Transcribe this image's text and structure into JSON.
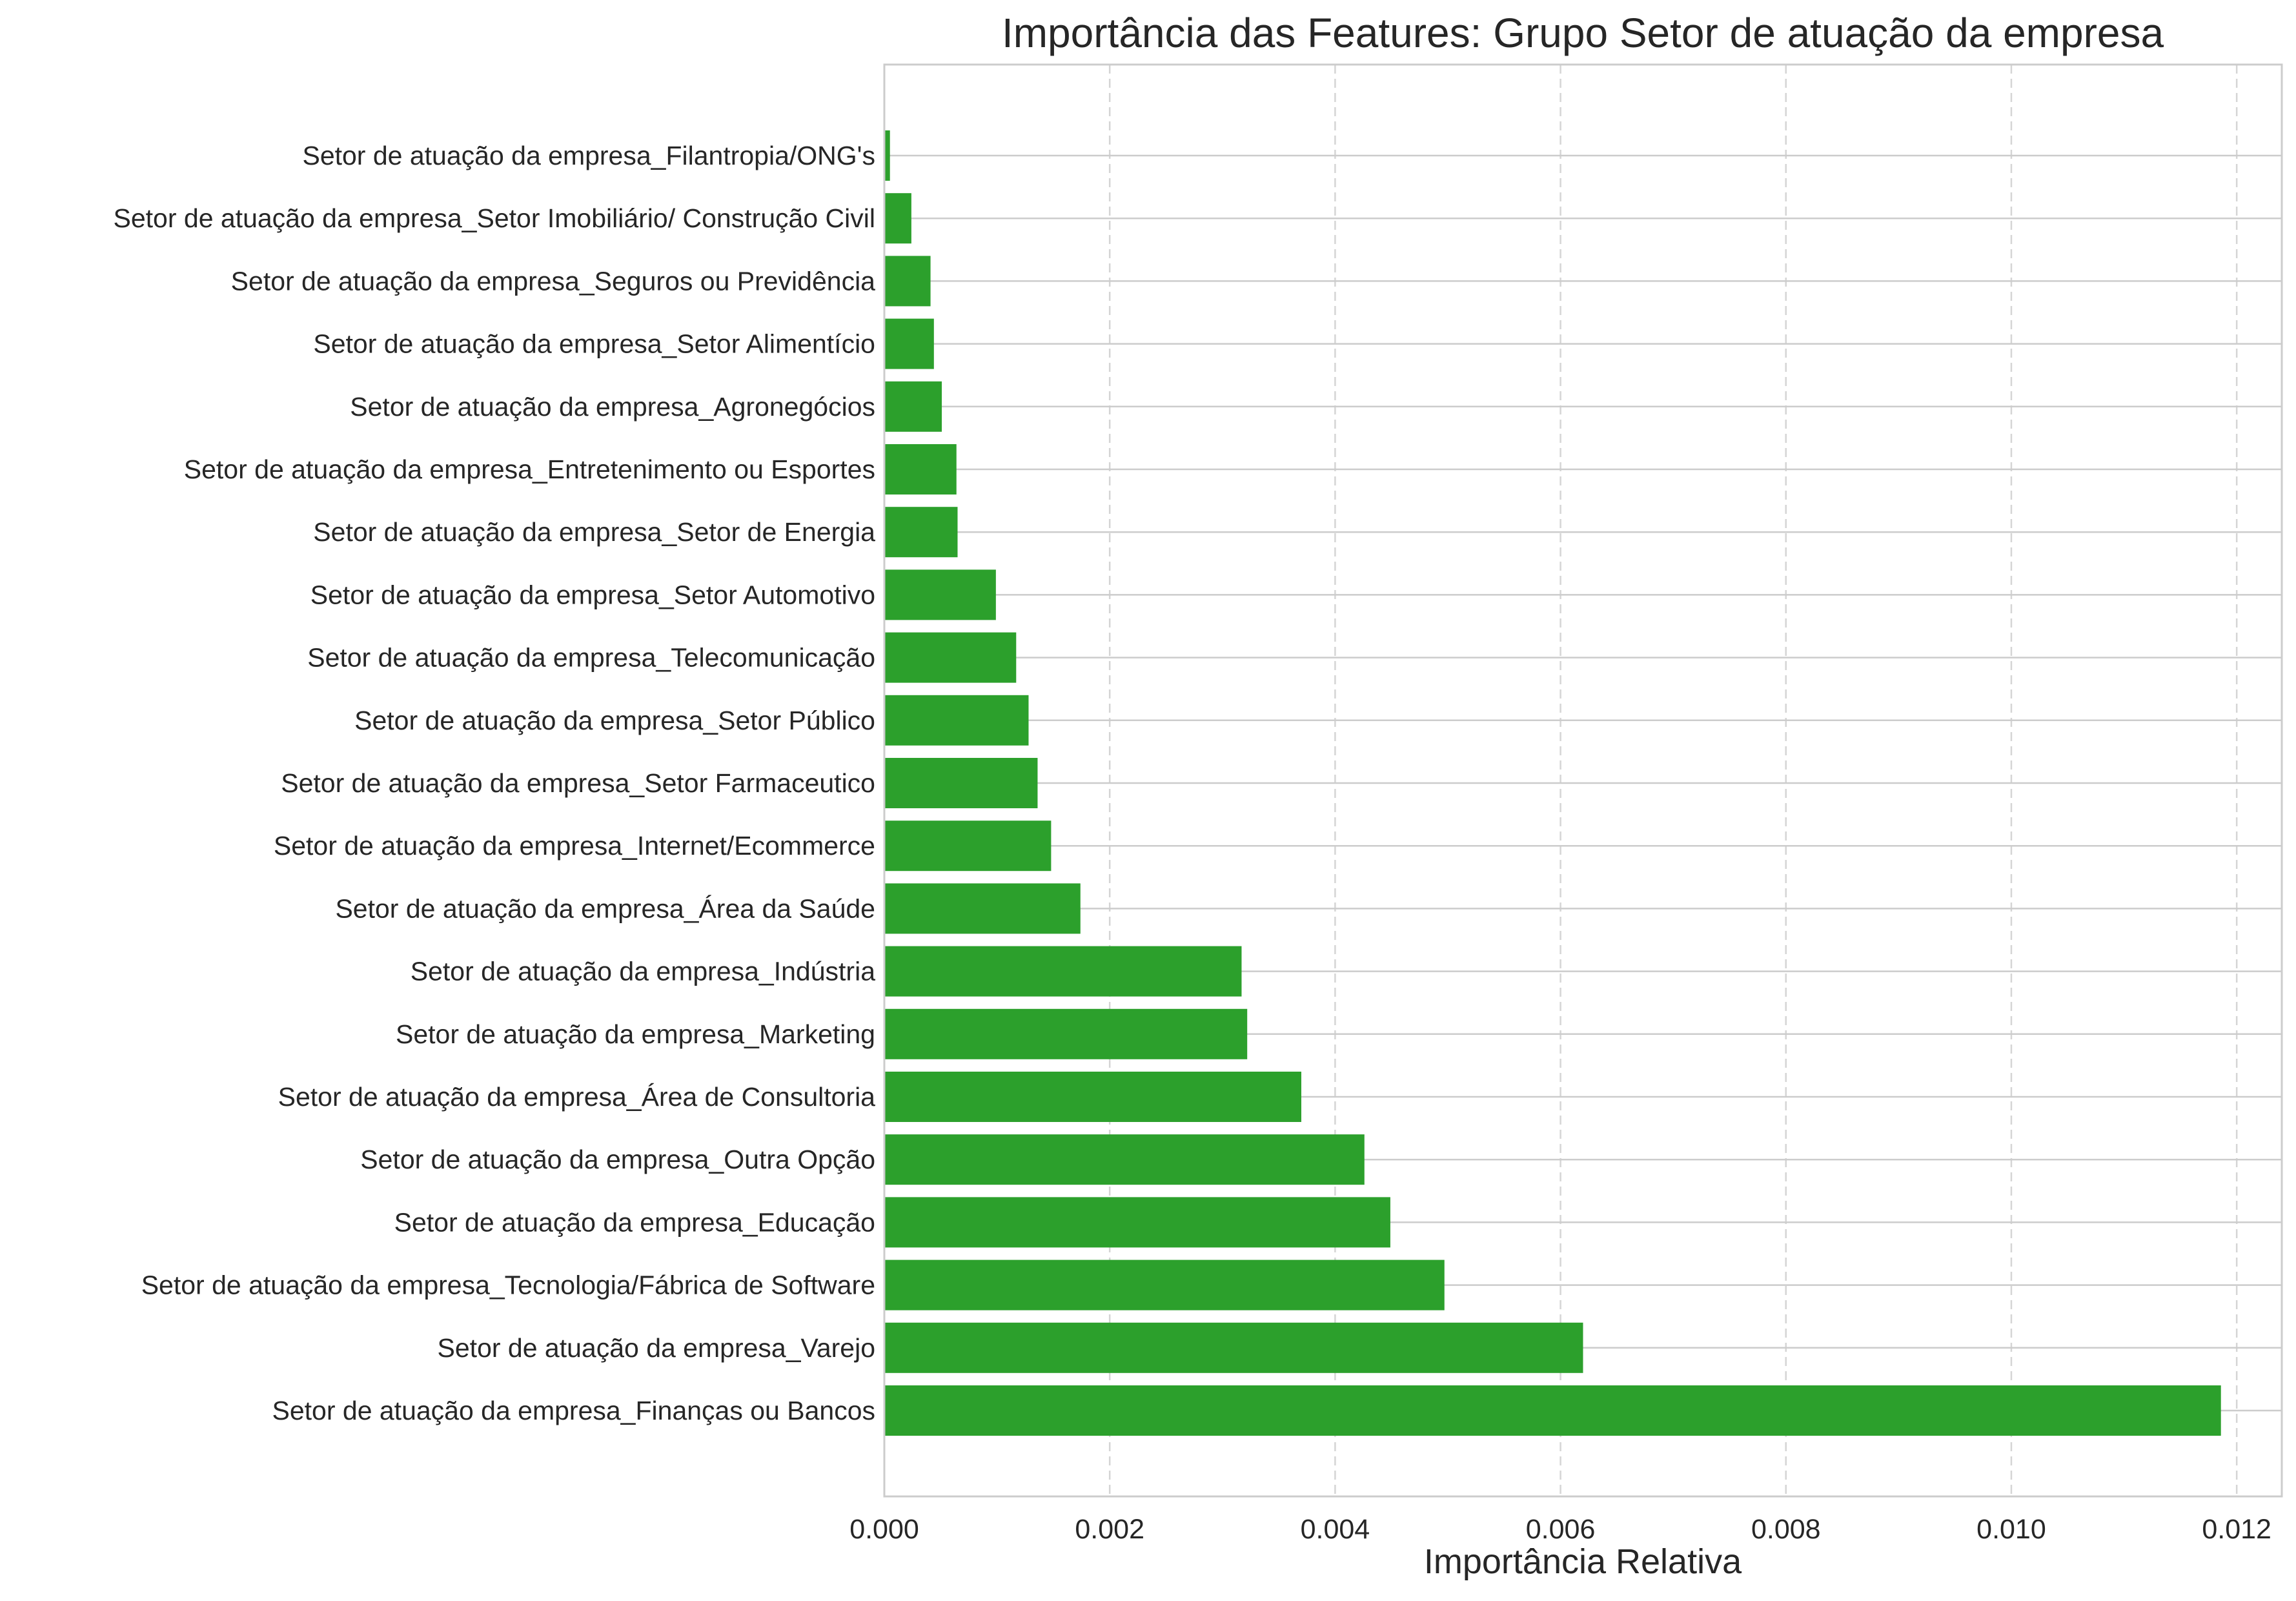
{
  "chart_data": {
    "type": "bar",
    "orientation": "horizontal",
    "title": "Importância das Features: Grupo Setor de atuação da empresa",
    "xlabel": "Importância Relativa",
    "ylabel": "",
    "xlim": [
      0,
      0.0124
    ],
    "xticks": [
      0.0,
      0.002,
      0.004,
      0.006,
      0.008,
      0.01,
      0.012
    ],
    "xtick_labels": [
      "0.000",
      "0.002",
      "0.004",
      "0.006",
      "0.008",
      "0.010",
      "0.012"
    ],
    "grid": true,
    "bar_color": "#2ca02c",
    "categories": [
      "Setor de atuação da empresa_Filantropia/ONG's",
      "Setor de atuação da empresa_Setor Imobiliário/ Construção Civil",
      "Setor de atuação da empresa_Seguros ou Previdência",
      "Setor de atuação da empresa_Setor Alimentício",
      "Setor de atuação da empresa_Agronegócios",
      "Setor de atuação da empresa_Entretenimento ou Esportes",
      "Setor de atuação da empresa_Setor de Energia",
      "Setor de atuação da empresa_Setor Automotivo",
      "Setor de atuação da empresa_Telecomunicação",
      "Setor de atuação da empresa_Setor Público",
      "Setor de atuação da empresa_Setor Farmaceutico",
      "Setor de atuação da empresa_Internet/Ecommerce",
      "Setor de atuação da empresa_Área da Saúde",
      "Setor de atuação da empresa_Indústria",
      "Setor de atuação da empresa_Marketing",
      "Setor de atuação da empresa_Área de Consultoria",
      "Setor de atuação da empresa_Outra Opção",
      "Setor de atuação da empresa_Educação",
      "Setor de atuação da empresa_Tecnologia/Fábrica de Software",
      "Setor de atuação da empresa_Varejo",
      "Setor de atuação da empresa_Finanças ou Bancos"
    ],
    "values": [
      5e-05,
      0.00024,
      0.00041,
      0.00044,
      0.00051,
      0.00064,
      0.00065,
      0.00099,
      0.00117,
      0.00128,
      0.00136,
      0.00148,
      0.00174,
      0.00317,
      0.00322,
      0.0037,
      0.00426,
      0.00449,
      0.00497,
      0.0062,
      0.01186
    ]
  }
}
